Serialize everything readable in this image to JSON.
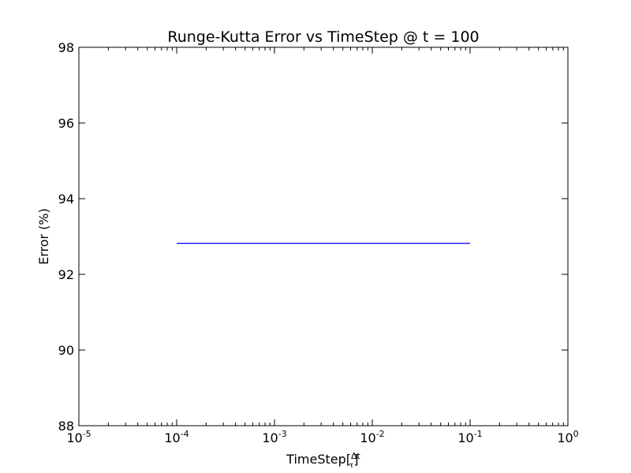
{
  "chart_data": {
    "type": "line",
    "title": "Runge-Kutta Error vs TimeStep @ t = 100",
    "xlabel": "TimeStep[Δt/τ]",
    "ylabel": "Error (%)",
    "x_scale": "log",
    "xlim": [
      1e-05,
      1
    ],
    "ylim": [
      88,
      98
    ],
    "x_ticks": [
      {
        "value": 1e-05,
        "base": "10",
        "exp": "-5"
      },
      {
        "value": 0.0001,
        "base": "10",
        "exp": "-4"
      },
      {
        "value": 0.001,
        "base": "10",
        "exp": "-3"
      },
      {
        "value": 0.01,
        "base": "10",
        "exp": "-2"
      },
      {
        "value": 0.1,
        "base": "10",
        "exp": "-1"
      },
      {
        "value": 1,
        "base": "10",
        "exp": "0"
      }
    ],
    "y_ticks": [
      88,
      90,
      92,
      94,
      96,
      98
    ],
    "grid": false,
    "series": [
      {
        "color": "#0000ff",
        "x": [
          0.0001,
          0.001,
          0.01,
          0.1
        ],
        "y": [
          92.82,
          92.82,
          92.82,
          92.82
        ]
      }
    ]
  }
}
